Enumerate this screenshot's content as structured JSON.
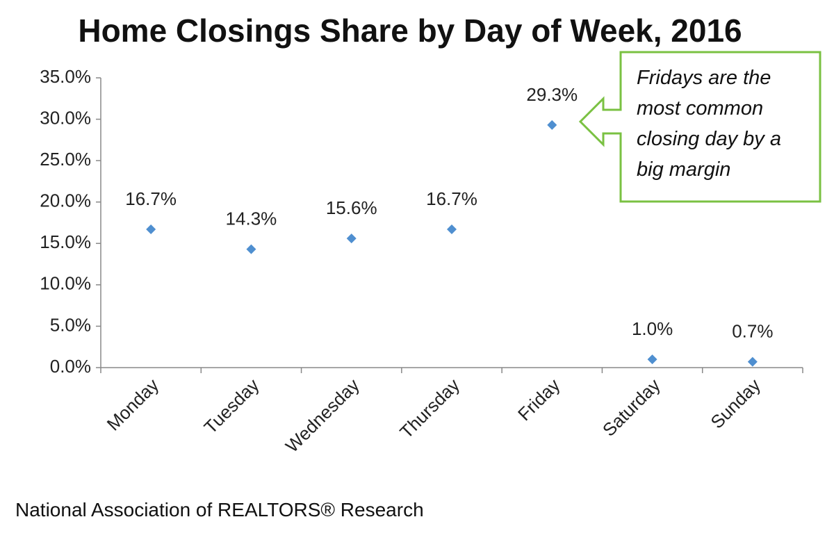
{
  "chart_data": {
    "type": "scatter",
    "title": "Home Closings Share by Day of Week, 2016",
    "annotation": "Fridays are the most common closing day by a big margin",
    "source": "National Association of REALTORS® Research",
    "categories": [
      "Monday",
      "Tuesday",
      "Wednesday",
      "Thursday",
      "Friday",
      "Saturday",
      "Sunday"
    ],
    "values": [
      16.7,
      14.3,
      15.6,
      16.7,
      29.3,
      1.0,
      0.7
    ],
    "value_labels": [
      "16.7%",
      "14.3%",
      "15.6%",
      "16.7%",
      "29.3%",
      "1.0%",
      "0.7%"
    ],
    "color": "#4f8fd0",
    "ylim": [
      0,
      35
    ],
    "yticks": [
      {
        "value": 0,
        "label": "0.0%"
      },
      {
        "value": 5,
        "label": "5.0%"
      },
      {
        "value": 10,
        "label": "10.0%"
      },
      {
        "value": 15,
        "label": "15.0%"
      },
      {
        "value": 20,
        "label": "20.0%"
      },
      {
        "value": 25,
        "label": "25.0%"
      },
      {
        "value": 30,
        "label": "30.0%"
      },
      {
        "value": 35,
        "label": "35.0%"
      }
    ],
    "grid": false
  }
}
